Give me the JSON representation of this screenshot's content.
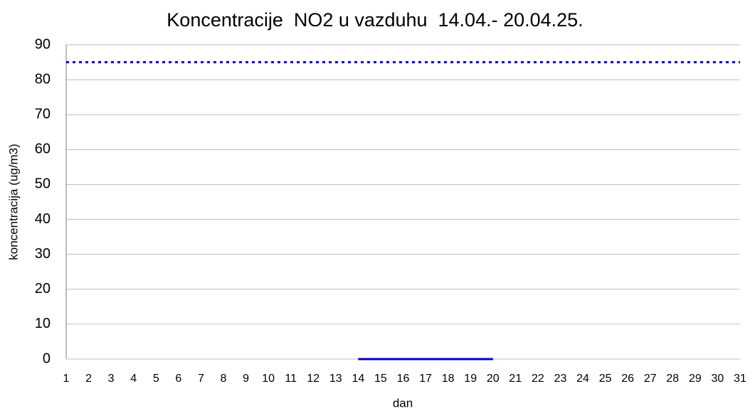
{
  "chart_data": {
    "type": "line",
    "title": "Koncentracije  NO2 u vazduhu  14.04.- 20.04.25.",
    "xlabel": "dan",
    "ylabel": "koncentracija (ug/m3)",
    "series": [
      {
        "color": "#0000cc",
        "dash": "solid",
        "x": [
          14,
          15,
          16,
          17,
          18,
          19,
          20
        ],
        "values": [
          0,
          0,
          0,
          0,
          0,
          0,
          0
        ]
      },
      {
        "color": "#0000cc",
        "dash": "dotted",
        "x": [
          1,
          31
        ],
        "values": [
          85,
          85
        ]
      }
    ],
    "xlim": [
      1,
      31
    ],
    "xticks": [
      1,
      2,
      3,
      4,
      5,
      6,
      7,
      8,
      9,
      10,
      11,
      12,
      13,
      14,
      15,
      16,
      17,
      18,
      19,
      20,
      21,
      22,
      23,
      24,
      25,
      26,
      27,
      28,
      29,
      30,
      31
    ],
    "ylim": [
      0,
      90
    ],
    "yticks": [
      0,
      10,
      20,
      30,
      40,
      50,
      60,
      70,
      80,
      90
    ],
    "grid": true
  }
}
